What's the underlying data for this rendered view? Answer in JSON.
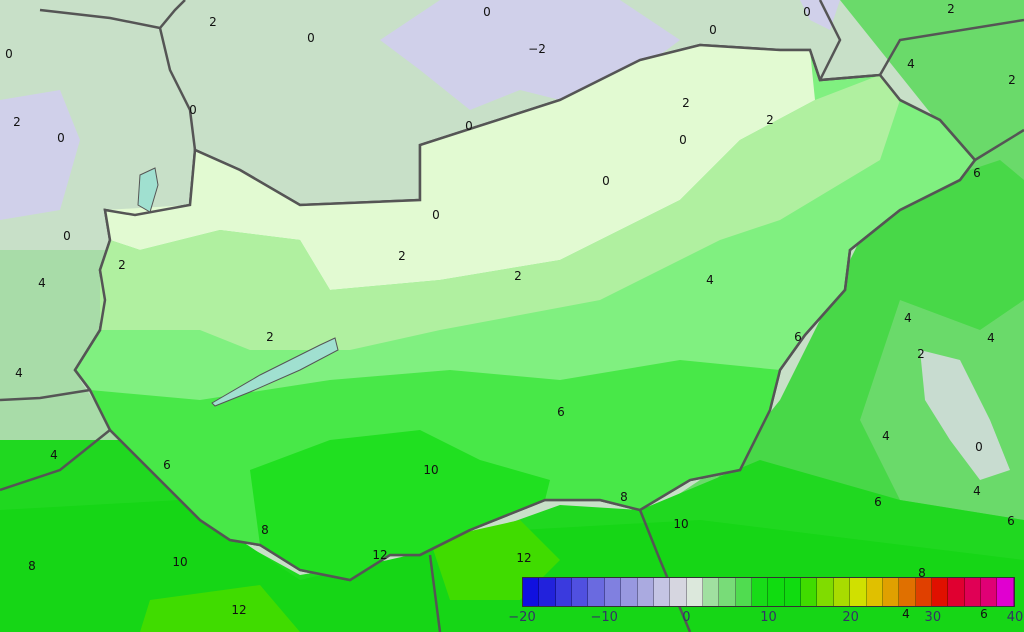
{
  "legend": {
    "ticks": [
      "−20",
      "−10",
      "0",
      "10",
      "20",
      "30",
      "40"
    ],
    "colors": [
      "#1010e0",
      "#2222dc",
      "#3a3ade",
      "#5050e0",
      "#6a6ae0",
      "#8080e0",
      "#9898e0",
      "#aaaae0",
      "#c4c4e4",
      "#d6d6e0",
      "#dce8dc",
      "#a0e0a0",
      "#78dc78",
      "#50dc50",
      "#18dc18",
      "#10dc10",
      "#10dc10",
      "#40dc00",
      "#80dc00",
      "#a8dc00",
      "#d0e000",
      "#e0c000",
      "#e0a000",
      "#e07000",
      "#e04000",
      "#e01000",
      "#e00030",
      "#e00055",
      "#e00075",
      "#e000d0"
    ]
  },
  "contour_labels": [
    "2",
    "0",
    "0",
    "0",
    "2",
    "0",
    "0",
    "−2",
    "0",
    "4",
    "2",
    "2",
    "0",
    "0",
    "2",
    "2",
    "0",
    "0",
    "6",
    "0",
    "0",
    "2",
    "2",
    "2",
    "4",
    "4",
    "4",
    "2",
    "6",
    "4",
    "2",
    "4",
    "6",
    "4",
    "0",
    "4",
    "6",
    "10",
    "4",
    "6",
    "8",
    "6",
    "8",
    "10",
    "12",
    "12",
    "10",
    "8",
    "8",
    "12",
    "4",
    "6"
  ],
  "colors": {
    "north_background": "#c8e0c8",
    "cold_patch": "#d0d0ea",
    "border": "#555555",
    "lake": "#a0e0d0"
  }
}
